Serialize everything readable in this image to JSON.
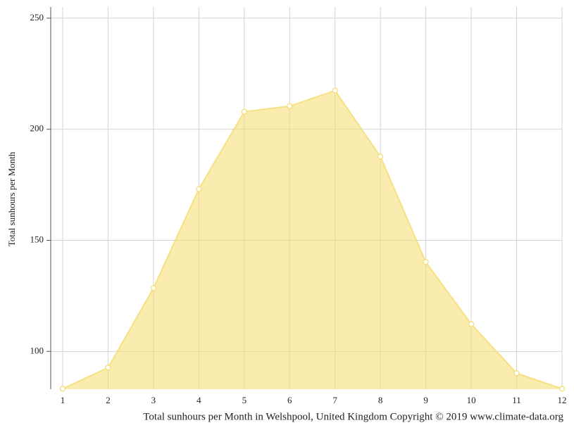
{
  "chart_data": {
    "type": "area",
    "y_label": "Total sunhours per Month",
    "caption": "Total sunhours per Month in Welshpool, United Kingdom Copyright © 2019 www.climate-data.org",
    "x": [
      1,
      2,
      3,
      4,
      5,
      6,
      7,
      8,
      9,
      10,
      11,
      12
    ],
    "series": [
      {
        "name": "Total sunhours per Month",
        "color": "#f5dc6e",
        "values": [
          83.2,
          92.7,
          128.5,
          173.1,
          207.9,
          210.4,
          217.4,
          187.7,
          140.2,
          112.3,
          90.2,
          83.2
        ]
      }
    ],
    "xlim": [
      1,
      12
    ],
    "xticks": [
      1,
      2,
      3,
      4,
      5,
      6,
      7,
      8,
      9,
      10,
      11,
      12
    ],
    "ylim": [
      83,
      255
    ],
    "yticks": [
      100,
      150,
      200,
      250
    ],
    "grid": true
  }
}
